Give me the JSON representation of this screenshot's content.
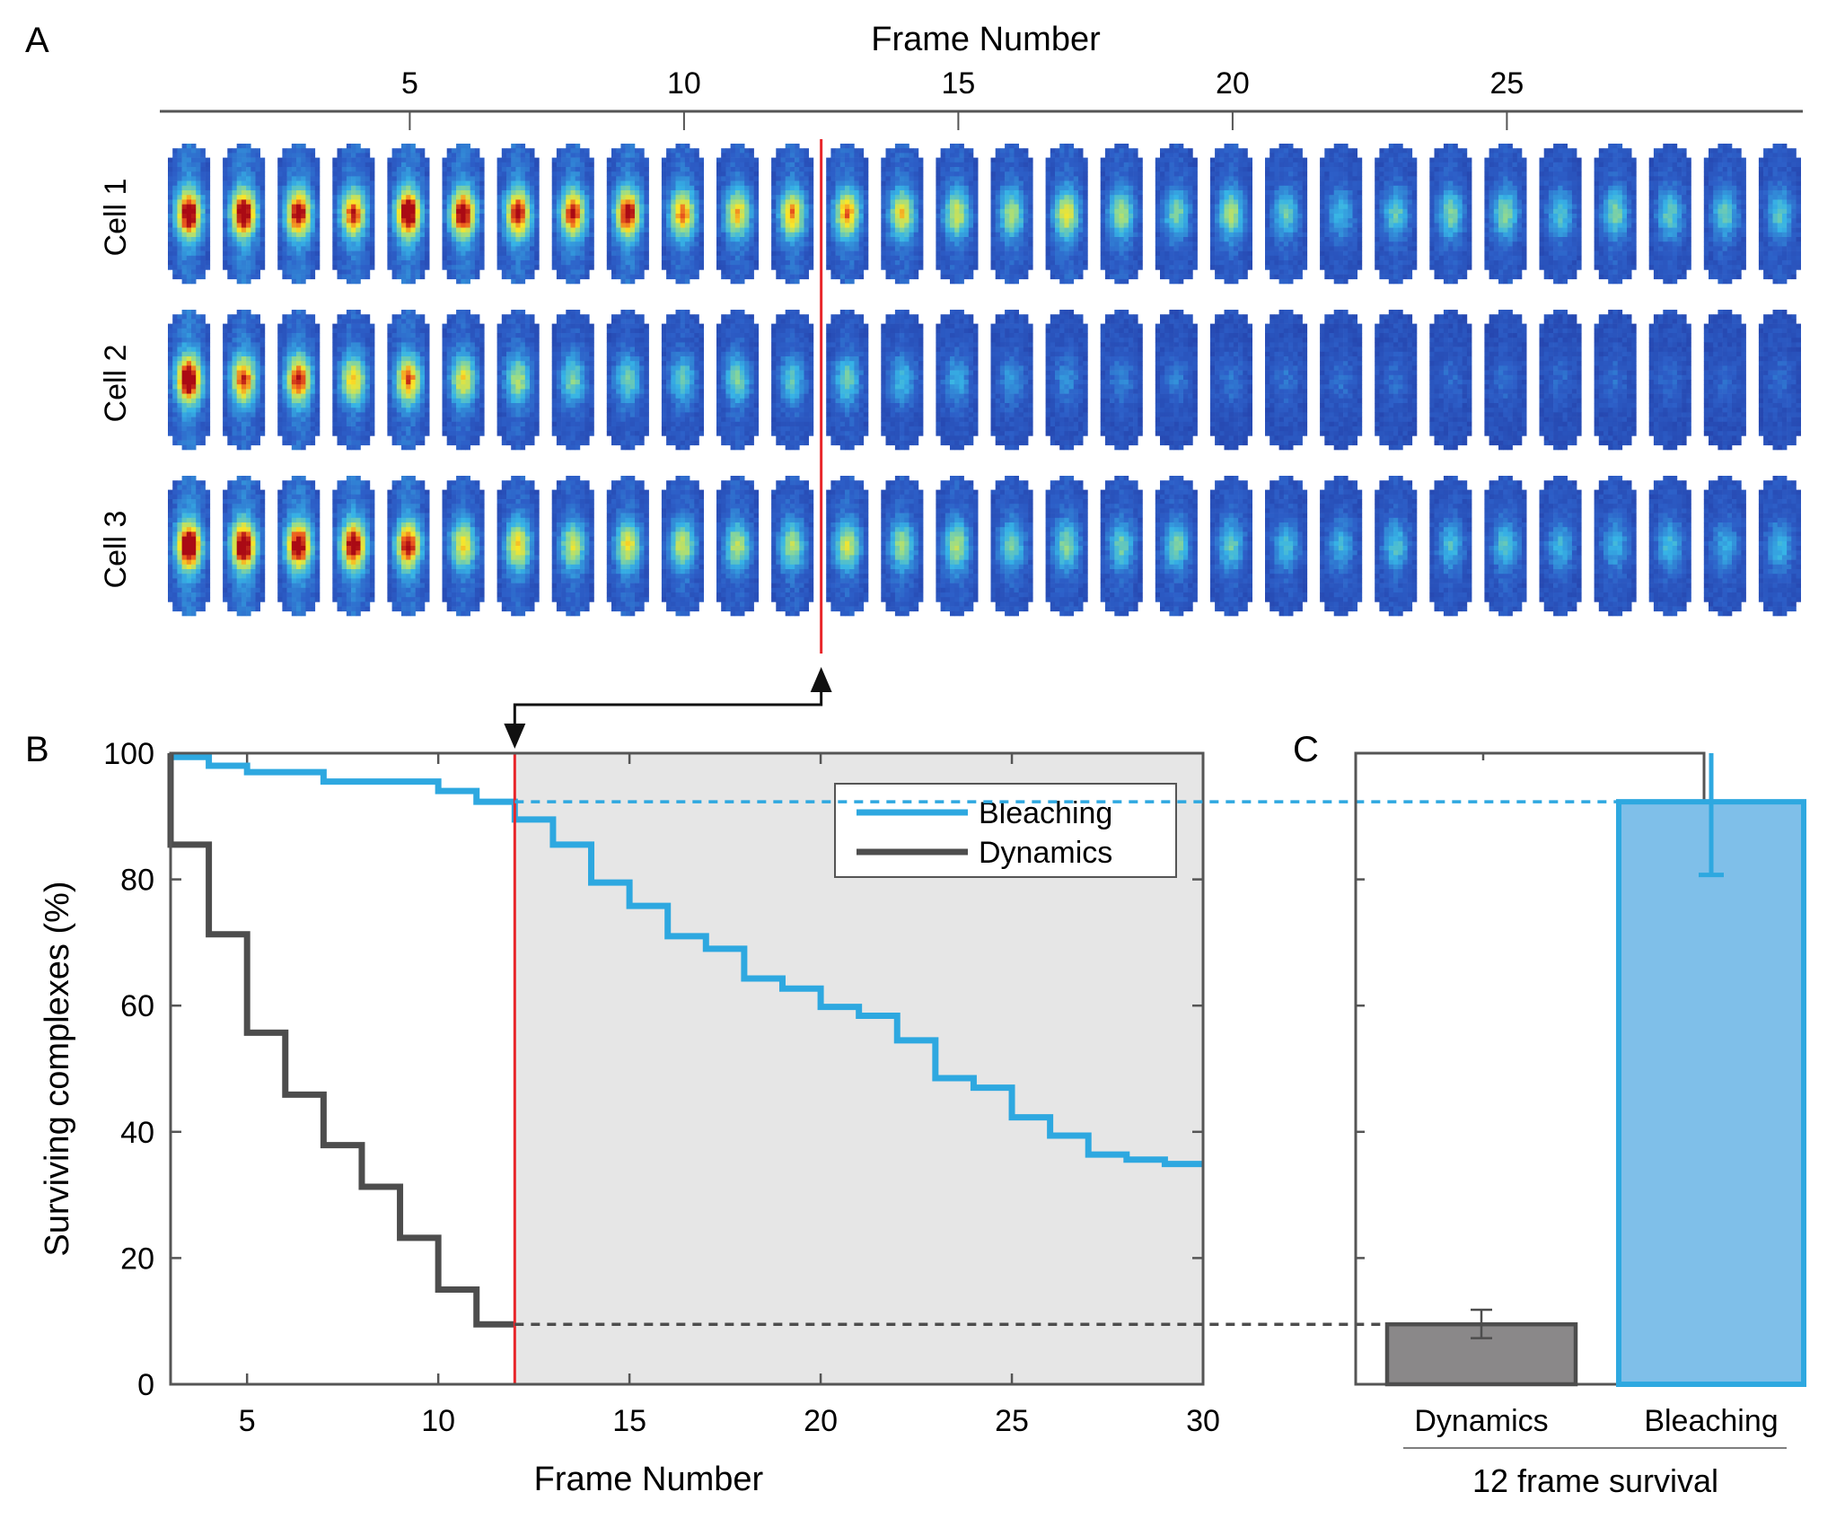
{
  "panel_labels": {
    "a": "A",
    "b": "B",
    "c": "C"
  },
  "colors": {
    "bleaching": "#2ea8e0",
    "bleaching_fill": "#7fbfe9",
    "dynamics": "#4d4d4d",
    "dynamics_fill": "#8a8889",
    "marker_line": "#e8262a",
    "shade": "#e6e6e6",
    "axis": "#555555",
    "arrow": "#111111"
  },
  "panel_a": {
    "title": "Frame Number",
    "ticks": [
      5,
      10,
      15,
      20,
      25
    ],
    "frames": 30,
    "first_frame": 1,
    "marker_frame": 12.5,
    "cells": [
      {
        "label": "Cell 1",
        "spot_intensity": [
          0.95,
          0.95,
          0.9,
          0.8,
          0.97,
          0.92,
          0.85,
          0.82,
          0.88,
          0.72,
          0.65,
          0.7,
          0.72,
          0.62,
          0.55,
          0.5,
          0.6,
          0.5,
          0.42,
          0.5,
          0.38,
          0.3,
          0.38,
          0.42,
          0.44,
          0.35,
          0.42,
          0.38,
          0.38,
          0.36
        ]
      },
      {
        "label": "Cell 2",
        "spot_intensity": [
          0.98,
          0.78,
          0.82,
          0.65,
          0.75,
          0.6,
          0.5,
          0.42,
          0.4,
          0.38,
          0.42,
          0.36,
          0.4,
          0.32,
          0.28,
          0.24,
          0.2,
          0.18,
          0.16,
          0.15,
          0.14,
          0.13,
          0.12,
          0.12,
          0.12,
          0.11,
          0.12,
          0.11,
          0.1,
          0.12
        ]
      },
      {
        "label": "Cell 3",
        "spot_intensity": [
          1.0,
          0.96,
          0.94,
          0.92,
          0.85,
          0.62,
          0.65,
          0.55,
          0.6,
          0.55,
          0.52,
          0.5,
          0.55,
          0.48,
          0.5,
          0.42,
          0.44,
          0.4,
          0.42,
          0.38,
          0.32,
          0.3,
          0.34,
          0.32,
          0.35,
          0.3,
          0.3,
          0.32,
          0.28,
          0.3
        ]
      }
    ]
  },
  "chart_data": [
    {
      "type": "line",
      "panel": "B",
      "title": "",
      "xlabel": "Frame Number",
      "ylabel": "Surviving complexes (%)",
      "xlim": [
        3,
        30
      ],
      "ylim": [
        0,
        100
      ],
      "xticks": [
        5,
        10,
        15,
        20,
        25,
        30
      ],
      "yticks": [
        0,
        20,
        40,
        60,
        80,
        100
      ],
      "grid": false,
      "shaded_region": {
        "x_from": 12,
        "x_to": 30
      },
      "marker_x": 12,
      "legend": {
        "position": "top-right",
        "entries": [
          "Bleaching",
          "Dynamics"
        ]
      },
      "series": [
        {
          "name": "Bleaching",
          "step": true,
          "x": [
            3,
            4,
            5,
            7,
            10,
            11,
            12,
            13,
            14,
            15,
            16,
            17,
            18,
            19,
            20,
            21,
            22,
            23,
            24,
            25,
            26,
            27,
            28,
            29,
            30
          ],
          "y": [
            99.4,
            98,
            97,
            95.5,
            94,
            92.3,
            89.5,
            85.5,
            79.5,
            75.8,
            71,
            69,
            64.3,
            62.7,
            59.8,
            58.4,
            54.5,
            48.5,
            47,
            42.3,
            39.4,
            36.4,
            35.6,
            34.9,
            34.9
          ]
        },
        {
          "name": "Dynamics",
          "step": true,
          "x": [
            3,
            4,
            5,
            6,
            7,
            8,
            9,
            10,
            11,
            12
          ],
          "y": [
            85.5,
            71.3,
            55.7,
            45.9,
            37.9,
            31.3,
            23.2,
            15,
            9.5,
            9.5
          ]
        }
      ],
      "reference_lines": [
        {
          "series": "Bleaching",
          "y": 92.3,
          "from_x": 12,
          "style": "dashed"
        },
        {
          "series": "Dynamics",
          "y": 9.5,
          "from_x": 12,
          "style": "dashed"
        }
      ]
    },
    {
      "type": "bar",
      "panel": "C",
      "title": "",
      "xlabel": "12 frame survival",
      "ylabel": "",
      "ylim": [
        0,
        100
      ],
      "categories": [
        "Dynamics",
        "Bleaching"
      ],
      "values": [
        9.5,
        92.3
      ],
      "error_low": [
        7.3,
        80.7
      ],
      "error_high": [
        11.8,
        100
      ]
    }
  ]
}
